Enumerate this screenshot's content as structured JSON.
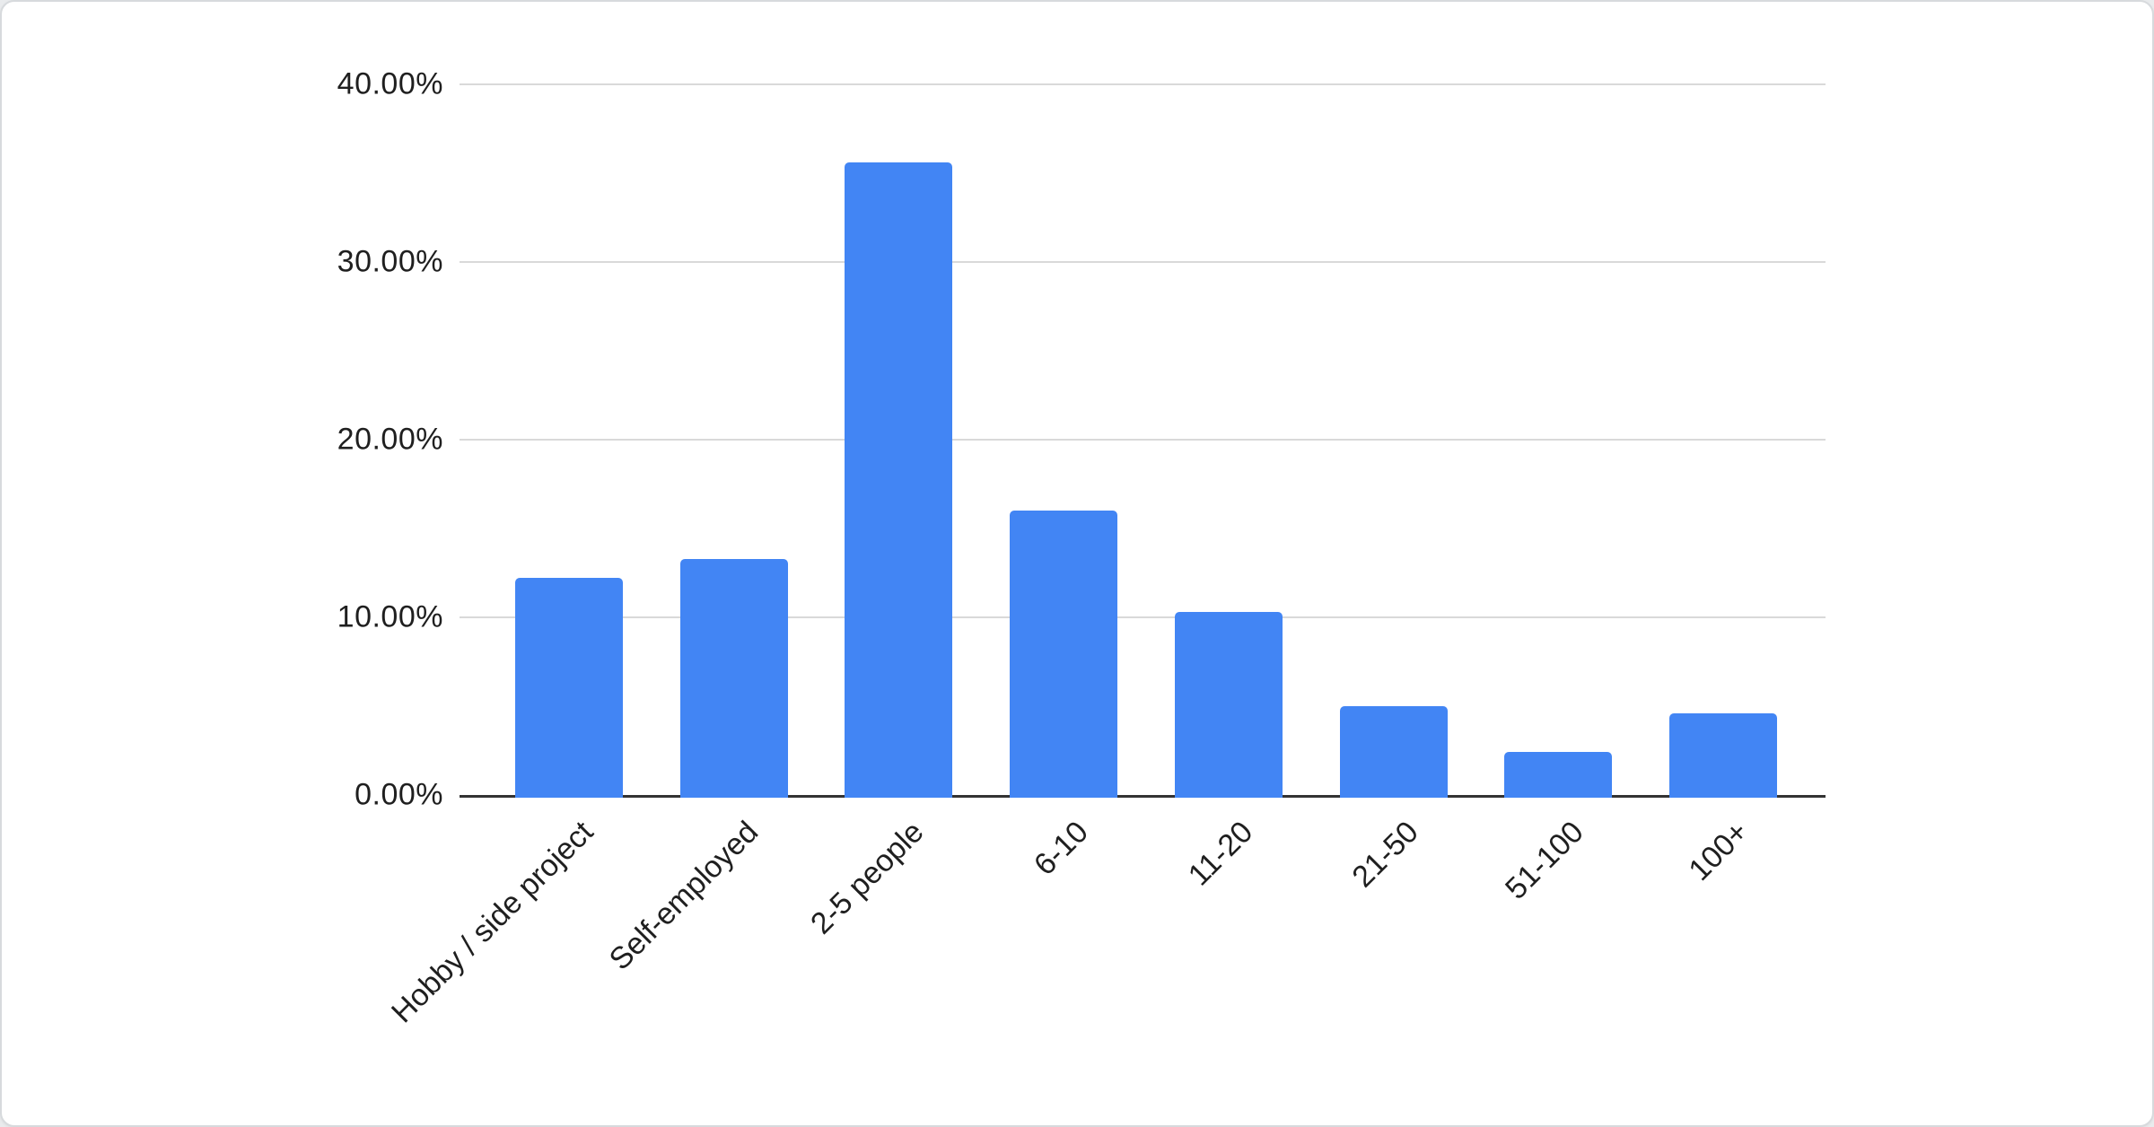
{
  "card": {
    "background": "#ffffff",
    "border_color": "#d7dadd",
    "page_background": "#e9ebed"
  },
  "chart_data": {
    "type": "bar",
    "title": "",
    "xlabel": "",
    "ylabel": "",
    "categories": [
      "Hobby / side project",
      "Self-employed",
      "2-5 people",
      "6-10",
      "11-20",
      "21-50",
      "51-100",
      "100+"
    ],
    "values": [
      12.2,
      13.3,
      35.6,
      16.0,
      10.3,
      5.0,
      2.4,
      4.6
    ],
    "value_unit": "%",
    "ylim": [
      0,
      40
    ],
    "yticks": [
      {
        "value": 0,
        "label": "0.00%"
      },
      {
        "value": 10,
        "label": "10.00%"
      },
      {
        "value": 20,
        "label": "20.00%"
      },
      {
        "value": 30,
        "label": "30.00%"
      },
      {
        "value": 40,
        "label": "40.00%"
      }
    ],
    "grid": "horizontal",
    "legend_position": "none",
    "bar_color": "#4285f4",
    "gridline_color": "#d9d9d9",
    "axis_line_color": "#333333",
    "text_color": "#1f1f1f"
  }
}
